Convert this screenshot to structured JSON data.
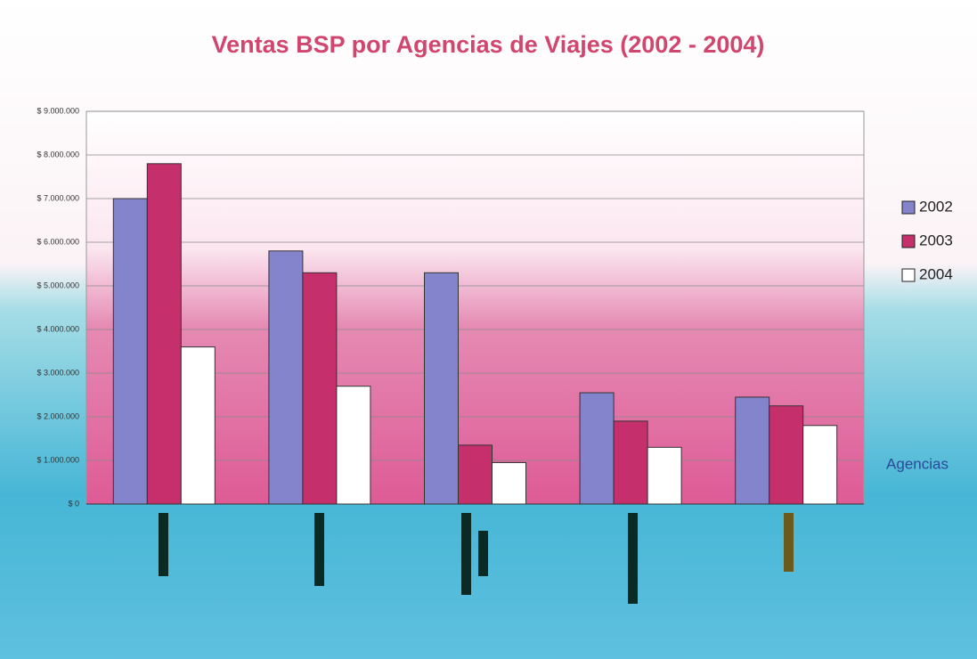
{
  "chart_data": {
    "type": "bar",
    "title": "Ventas BSP por Agencias de Viajes (2002 - 2004)",
    "x_label": "Agencias",
    "categories": [
      null,
      null,
      null,
      null,
      null
    ],
    "series": [
      {
        "name": "2002",
        "color": "#8484cc",
        "values": [
          7000000,
          5800000,
          5300000,
          2550000,
          2450000
        ]
      },
      {
        "name": "2003",
        "color": "#c42f6c",
        "values": [
          7800000,
          5300000,
          1350000,
          1900000,
          2250000
        ]
      },
      {
        "name": "2004",
        "color": "#ffffff",
        "values": [
          3600000,
          2700000,
          950000,
          1300000,
          1800000
        ]
      }
    ],
    "ylim": [
      0,
      9000000
    ],
    "yticks": [
      {
        "value": 0,
        "label": "$ 0"
      },
      {
        "value": 1000000,
        "label": "$ 1.000.000"
      },
      {
        "value": 2000000,
        "label": "$ 2.000.000"
      },
      {
        "value": 3000000,
        "label": "$ 3.000.000"
      },
      {
        "value": 4000000,
        "label": "$ 4.000.000"
      },
      {
        "value": 5000000,
        "label": "$ 5.000.000"
      },
      {
        "value": 6000000,
        "label": "$ 6.000.000"
      },
      {
        "value": 7000000,
        "label": "$ 7.000.000"
      },
      {
        "value": 8000000,
        "label": "$ 8.000.000"
      },
      {
        "value": 9000000,
        "label": "$ 9.000.000"
      }
    ],
    "grid": true,
    "legend": "right"
  }
}
